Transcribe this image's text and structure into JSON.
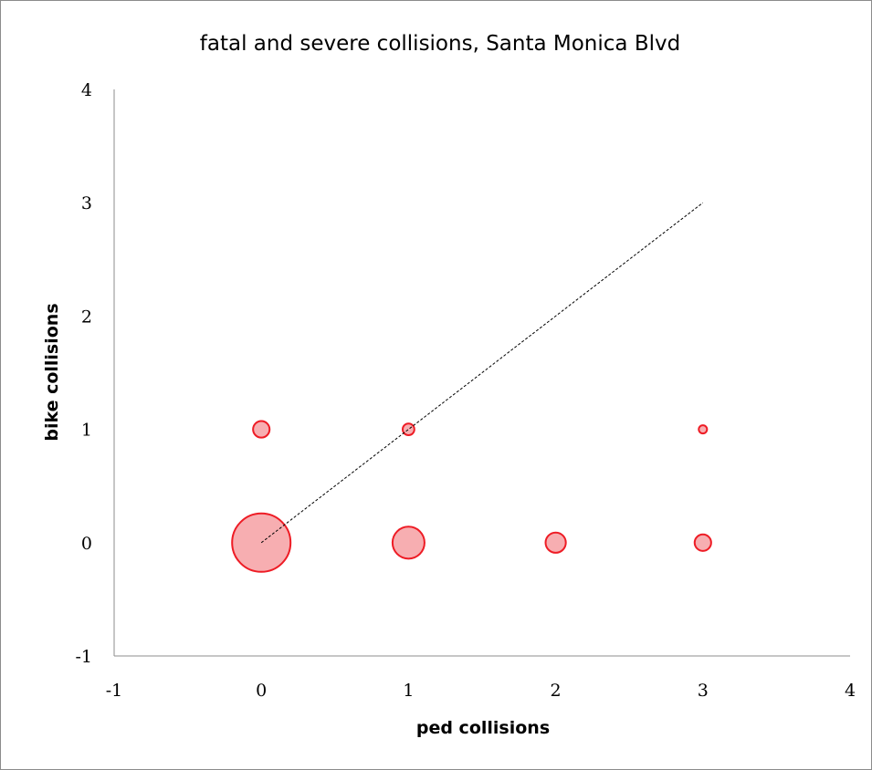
{
  "chart_data": {
    "type": "scatter",
    "title": "fatal and severe collisions, Santa Monica Blvd",
    "xlabel": "ped collisions",
    "ylabel": "bike collisions",
    "xlim": [
      -1,
      4
    ],
    "ylim": [
      -1,
      4
    ],
    "xticks": [
      "-1",
      "0",
      "1",
      "2",
      "3",
      "4"
    ],
    "yticks": [
      "-1",
      "0",
      "1",
      "2",
      "3",
      "4"
    ],
    "points": [
      {
        "x": 0,
        "y": 0,
        "size": 100
      },
      {
        "x": 1,
        "y": 0,
        "size": 30
      },
      {
        "x": 2,
        "y": 0,
        "size": 12
      },
      {
        "x": 3,
        "y": 0,
        "size": 8
      },
      {
        "x": 0,
        "y": 1,
        "size": 8
      },
      {
        "x": 1,
        "y": 1,
        "size": 4
      },
      {
        "x": 3,
        "y": 1,
        "size": 2
      }
    ],
    "reference_line": {
      "from": [
        0,
        0
      ],
      "to": [
        3,
        3
      ],
      "style": "dashed"
    },
    "grid": false,
    "legend": "none",
    "colors": {
      "bubble_fill": "#f7aeb1",
      "bubble_stroke": "#ee1c25",
      "line": "#000000"
    }
  }
}
